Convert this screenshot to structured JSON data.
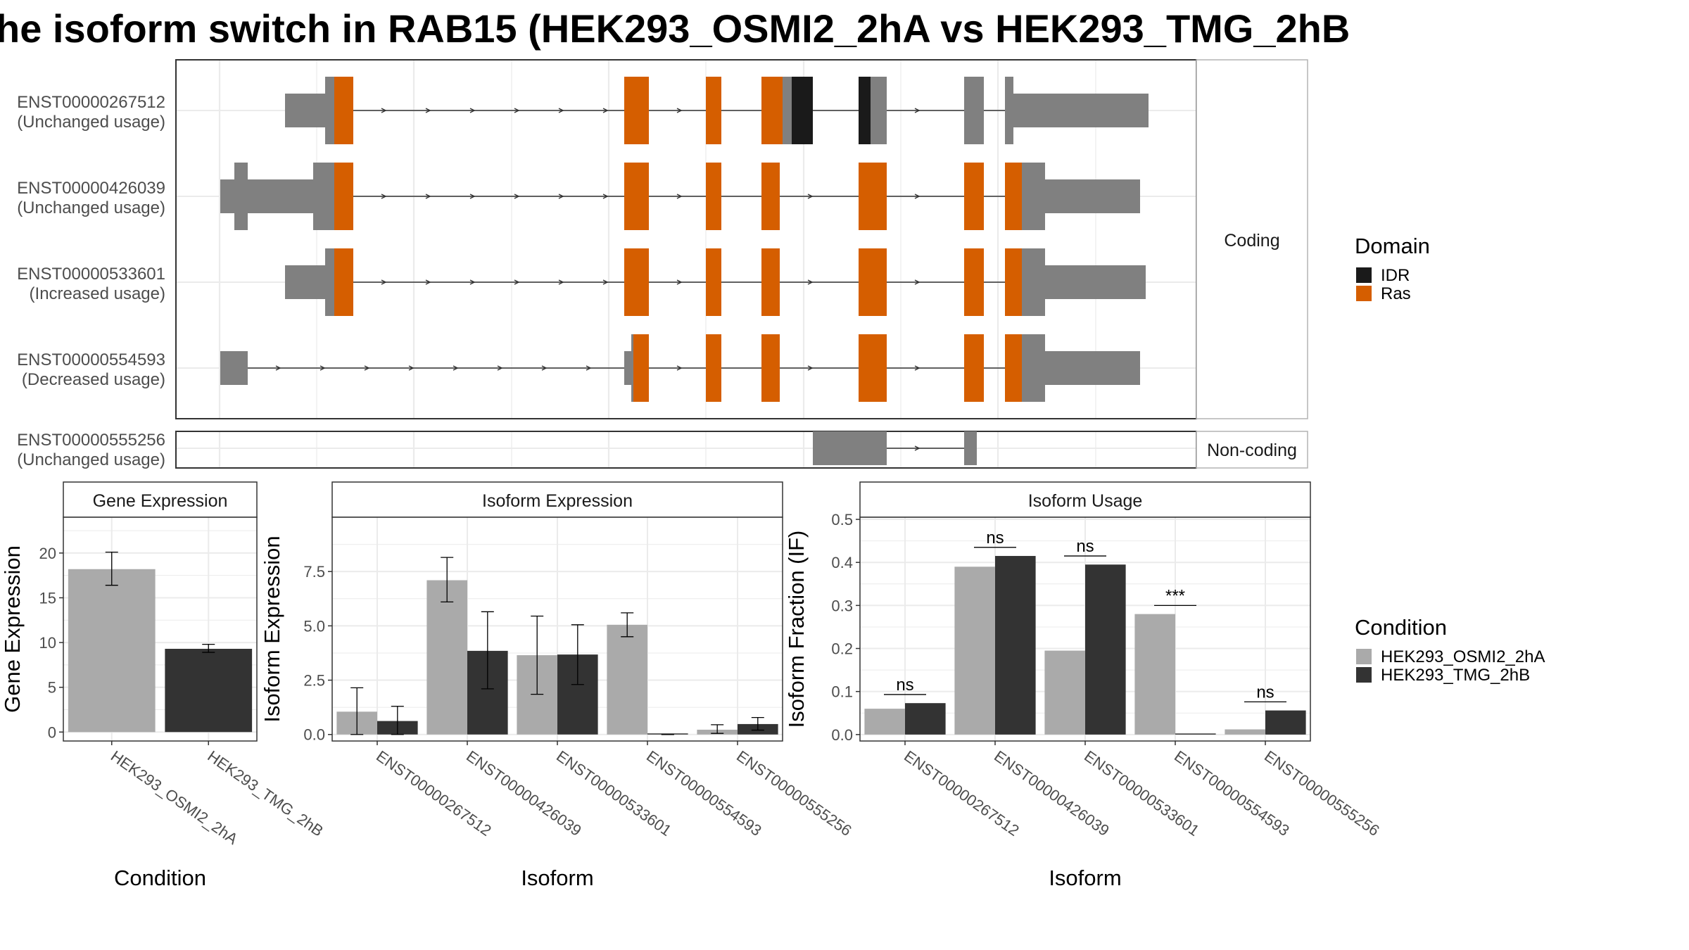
{
  "title": "he isoform switch in RAB15 (HEK293_OSMI2_2hA vs HEK293_TMG_2hB",
  "colors": {
    "utr": "#808080",
    "ras": "#D55E00",
    "idr": "#1a1a1a",
    "cond1": "#aaaaaa",
    "cond2": "#333333",
    "grid": "#ebebeb",
    "panel_border": "#333333"
  },
  "transcript_panel": {
    "facets": [
      "Coding",
      "Non-coding"
    ],
    "transcripts": [
      {
        "id": "ENST00000267512",
        "status": "(Unchanged usage)",
        "facet": "Coding"
      },
      {
        "id": "ENST00000426039",
        "status": "(Unchanged usage)",
        "facet": "Coding"
      },
      {
        "id": "ENST00000533601",
        "status": "(Increased usage)",
        "facet": "Coding"
      },
      {
        "id": "ENST00000554593",
        "status": "(Decreased usage)",
        "facet": "Coding"
      },
      {
        "id": "ENST00000555256",
        "status": "(Unchanged usage)",
        "facet": "Non-coding"
      }
    ],
    "legend_title": "Domain",
    "legend_items": [
      {
        "label": "IDR",
        "color": "#1a1a1a"
      },
      {
        "label": "Ras",
        "color": "#D55E00"
      }
    ]
  },
  "chart_data": [
    {
      "type": "bar",
      "title": "Gene Expression",
      "xlabel": "Condition",
      "ylabel": "Gene Expression",
      "categories": [
        "HEK293_OSMI2_2hA",
        "HEK293_TMG_2hB"
      ],
      "values": [
        18.2,
        9.3
      ],
      "error": [
        [
          16.4,
          20.1
        ],
        [
          8.9,
          9.8
        ]
      ],
      "ylim": [
        -1,
        24
      ],
      "yticks": [
        "0",
        "5",
        "10",
        "15",
        "20"
      ],
      "grid": true
    },
    {
      "type": "bar",
      "title": "Isoform Expression",
      "xlabel": "Isoform",
      "ylabel": "Isoform Expression",
      "categories": [
        "ENST00000267512",
        "ENST00000426039",
        "ENST00000533601",
        "ENST00000554593",
        "ENST00000555256"
      ],
      "series": [
        {
          "name": "HEK293_OSMI2_2hA",
          "values": [
            1.05,
            7.1,
            3.65,
            5.05,
            0.22
          ],
          "error": [
            [
              0.0,
              2.15
            ],
            [
              6.1,
              8.15
            ],
            [
              1.85,
              5.45
            ],
            [
              4.5,
              5.6
            ],
            [
              0.05,
              0.45
            ]
          ]
        },
        {
          "name": "HEK293_TMG_2hB",
          "values": [
            0.62,
            3.85,
            3.68,
            0.0,
            0.48
          ],
          "error": [
            [
              0.0,
              1.3
            ],
            [
              2.1,
              5.65
            ],
            [
              2.3,
              5.05
            ],
            [
              0.0,
              0.0
            ],
            [
              0.2,
              0.78
            ]
          ]
        }
      ],
      "ylim": [
        -0.3,
        10.0
      ],
      "yticks": [
        "0.0",
        "2.5",
        "5.0",
        "7.5"
      ],
      "grid": true
    },
    {
      "type": "bar",
      "title": "Isoform Usage",
      "xlabel": "Isoform",
      "ylabel": "Isoform Fraction (IF)",
      "categories": [
        "ENST00000267512",
        "ENST00000426039",
        "ENST00000533601",
        "ENST00000554593",
        "ENST00000555256"
      ],
      "series": [
        {
          "name": "HEK293_OSMI2_2hA",
          "values": [
            0.06,
            0.39,
            0.195,
            0.28,
            0.012
          ]
        },
        {
          "name": "HEK293_TMG_2hB",
          "values": [
            0.073,
            0.415,
            0.395,
            0.0,
            0.056
          ]
        }
      ],
      "significance": [
        "ns",
        "ns",
        "ns",
        "***",
        "ns"
      ],
      "ylim": [
        -0.015,
        0.505
      ],
      "yticks": [
        "0.0",
        "0.1",
        "0.2",
        "0.3",
        "0.4",
        "0.5"
      ],
      "grid": true,
      "legend_title": "Condition",
      "legend_position": "right"
    }
  ]
}
